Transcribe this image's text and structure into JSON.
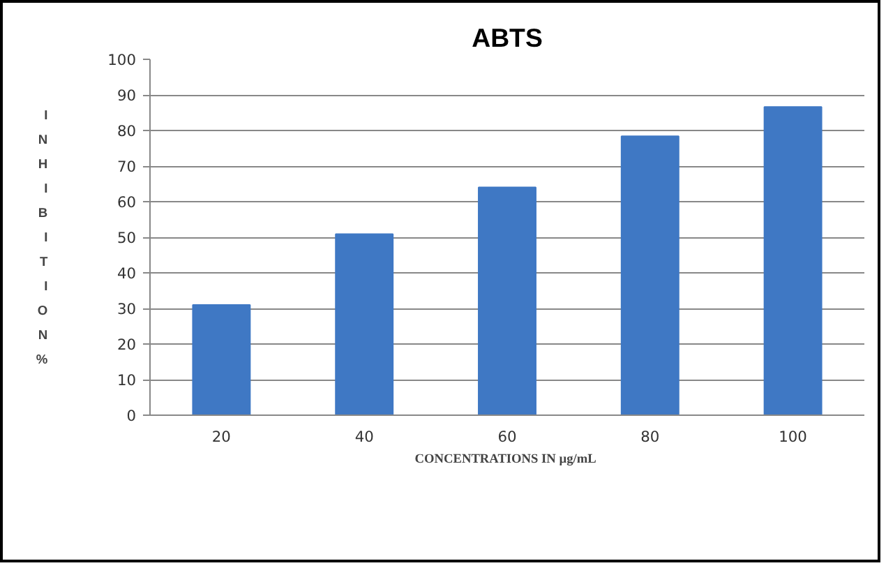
{
  "chart_data": {
    "type": "bar",
    "title": "ABTS",
    "xlabel": "CONCENTRATIONS  IN µg/mL",
    "ylabel": "INHIBITION %",
    "categories": [
      "20",
      "40",
      "60",
      "80",
      "100"
    ],
    "series": [
      {
        "color": "#3f78c4",
        "values": [
          31.0,
          50.9,
          64.0,
          78.4,
          86.6
        ]
      }
    ],
    "ylim": [
      0,
      100
    ],
    "yticks": [
      0,
      10,
      20,
      30,
      40,
      50,
      60,
      70,
      80,
      90,
      100
    ],
    "grid": "y"
  }
}
